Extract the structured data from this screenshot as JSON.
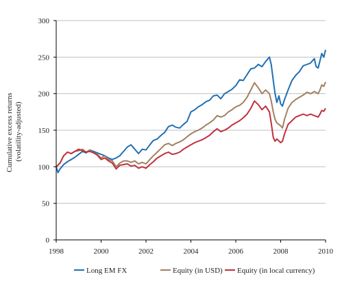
{
  "chart_data": {
    "type": "line",
    "title": "",
    "xlabel": "",
    "ylabel_lines": [
      "Cumulative excess returns",
      "(volatility-adjusted)"
    ],
    "xlim": [
      1998,
      2010
    ],
    "ylim": [
      0,
      300
    ],
    "x_ticks": [
      1998,
      2000,
      2002,
      2004,
      2006,
      2008,
      2010
    ],
    "y_ticks": [
      0,
      50,
      100,
      150,
      200,
      250,
      300
    ],
    "grid": "horizontal",
    "legend_position": "bottom",
    "series": [
      {
        "name": "Long EM FX",
        "color": "#1f6fb2",
        "points": [
          [
            1998.0,
            100
          ],
          [
            1998.08,
            92
          ],
          [
            1998.17,
            97
          ],
          [
            1998.33,
            103
          ],
          [
            1998.5,
            107
          ],
          [
            1998.67,
            110
          ],
          [
            1998.83,
            113
          ],
          [
            1999.0,
            117
          ],
          [
            1999.17,
            121
          ],
          [
            1999.33,
            119
          ],
          [
            1999.5,
            123
          ],
          [
            1999.67,
            121
          ],
          [
            1999.83,
            119
          ],
          [
            2000.0,
            117
          ],
          [
            2000.17,
            115
          ],
          [
            2000.33,
            112
          ],
          [
            2000.5,
            110
          ],
          [
            2000.67,
            112
          ],
          [
            2000.83,
            115
          ],
          [
            2001.0,
            121
          ],
          [
            2001.17,
            127
          ],
          [
            2001.33,
            130
          ],
          [
            2001.5,
            124
          ],
          [
            2001.67,
            118
          ],
          [
            2001.83,
            124
          ],
          [
            2002.0,
            123
          ],
          [
            2002.17,
            130
          ],
          [
            2002.33,
            136
          ],
          [
            2002.5,
            138
          ],
          [
            2002.67,
            143
          ],
          [
            2002.83,
            147
          ],
          [
            2003.0,
            155
          ],
          [
            2003.17,
            157
          ],
          [
            2003.33,
            154
          ],
          [
            2003.5,
            153
          ],
          [
            2003.67,
            158
          ],
          [
            2003.83,
            162
          ],
          [
            2004.0,
            175
          ],
          [
            2004.17,
            178
          ],
          [
            2004.33,
            182
          ],
          [
            2004.5,
            185
          ],
          [
            2004.67,
            189
          ],
          [
            2004.83,
            191
          ],
          [
            2005.0,
            197
          ],
          [
            2005.17,
            198
          ],
          [
            2005.33,
            193
          ],
          [
            2005.5,
            200
          ],
          [
            2005.67,
            203
          ],
          [
            2005.83,
            206
          ],
          [
            2006.0,
            211
          ],
          [
            2006.17,
            219
          ],
          [
            2006.33,
            218
          ],
          [
            2006.5,
            226
          ],
          [
            2006.67,
            234
          ],
          [
            2006.83,
            235
          ],
          [
            2007.0,
            240
          ],
          [
            2007.17,
            237
          ],
          [
            2007.33,
            244
          ],
          [
            2007.5,
            250
          ],
          [
            2007.58,
            240
          ],
          [
            2007.67,
            218
          ],
          [
            2007.75,
            200
          ],
          [
            2007.83,
            188
          ],
          [
            2007.92,
            197
          ],
          [
            2008.0,
            186
          ],
          [
            2008.08,
            183
          ],
          [
            2008.17,
            192
          ],
          [
            2008.33,
            205
          ],
          [
            2008.5,
            218
          ],
          [
            2008.67,
            225
          ],
          [
            2008.83,
            230
          ],
          [
            2009.0,
            238
          ],
          [
            2009.17,
            240
          ],
          [
            2009.33,
            242
          ],
          [
            2009.5,
            248
          ],
          [
            2009.58,
            237
          ],
          [
            2009.67,
            235
          ],
          [
            2009.75,
            245
          ],
          [
            2009.83,
            255
          ],
          [
            2009.92,
            250
          ],
          [
            2010.0,
            260
          ]
        ]
      },
      {
        "name": "Equity (in USD)",
        "color": "#a08060",
        "points": [
          [
            1998.0,
            100
          ],
          [
            1998.17,
            105
          ],
          [
            1998.33,
            115
          ],
          [
            1998.5,
            120
          ],
          [
            1998.67,
            118
          ],
          [
            1998.83,
            121
          ],
          [
            1999.0,
            122
          ],
          [
            1999.17,
            124
          ],
          [
            1999.33,
            120
          ],
          [
            1999.5,
            123
          ],
          [
            1999.67,
            119
          ],
          [
            1999.83,
            117
          ],
          [
            2000.0,
            112
          ],
          [
            2000.17,
            115
          ],
          [
            2000.33,
            110
          ],
          [
            2000.5,
            108
          ],
          [
            2000.67,
            100
          ],
          [
            2000.83,
            105
          ],
          [
            2001.0,
            108
          ],
          [
            2001.17,
            108
          ],
          [
            2001.33,
            106
          ],
          [
            2001.5,
            108
          ],
          [
            2001.67,
            104
          ],
          [
            2001.83,
            106
          ],
          [
            2002.0,
            104
          ],
          [
            2002.17,
            110
          ],
          [
            2002.33,
            115
          ],
          [
            2002.5,
            120
          ],
          [
            2002.67,
            125
          ],
          [
            2002.83,
            130
          ],
          [
            2003.0,
            132
          ],
          [
            2003.17,
            129
          ],
          [
            2003.33,
            132
          ],
          [
            2003.5,
            134
          ],
          [
            2003.67,
            137
          ],
          [
            2003.83,
            141
          ],
          [
            2004.0,
            145
          ],
          [
            2004.17,
            148
          ],
          [
            2004.33,
            150
          ],
          [
            2004.5,
            153
          ],
          [
            2004.67,
            157
          ],
          [
            2004.83,
            160
          ],
          [
            2005.0,
            164
          ],
          [
            2005.17,
            170
          ],
          [
            2005.33,
            168
          ],
          [
            2005.5,
            170
          ],
          [
            2005.67,
            175
          ],
          [
            2005.83,
            178
          ],
          [
            2006.0,
            182
          ],
          [
            2006.17,
            184
          ],
          [
            2006.33,
            188
          ],
          [
            2006.5,
            195
          ],
          [
            2006.67,
            205
          ],
          [
            2006.83,
            215
          ],
          [
            2007.0,
            208
          ],
          [
            2007.17,
            200
          ],
          [
            2007.33,
            205
          ],
          [
            2007.5,
            200
          ],
          [
            2007.58,
            190
          ],
          [
            2007.67,
            175
          ],
          [
            2007.75,
            165
          ],
          [
            2007.83,
            160
          ],
          [
            2008.0,
            156
          ],
          [
            2008.08,
            153
          ],
          [
            2008.17,
            165
          ],
          [
            2008.33,
            180
          ],
          [
            2008.5,
            188
          ],
          [
            2008.67,
            192
          ],
          [
            2008.83,
            195
          ],
          [
            2009.0,
            198
          ],
          [
            2009.17,
            202
          ],
          [
            2009.33,
            200
          ],
          [
            2009.5,
            203
          ],
          [
            2009.67,
            200
          ],
          [
            2009.75,
            205
          ],
          [
            2009.83,
            212
          ],
          [
            2009.92,
            210
          ],
          [
            2010.0,
            216
          ]
        ]
      },
      {
        "name": "Equity (in local currency)",
        "color": "#c0303c",
        "points": [
          [
            1998.0,
            100
          ],
          [
            1998.17,
            105
          ],
          [
            1998.33,
            115
          ],
          [
            1998.5,
            120
          ],
          [
            1998.67,
            118
          ],
          [
            1998.83,
            121
          ],
          [
            1999.0,
            124
          ],
          [
            1999.17,
            122
          ],
          [
            1999.33,
            120
          ],
          [
            1999.5,
            121
          ],
          [
            1999.67,
            119
          ],
          [
            1999.83,
            116
          ],
          [
            2000.0,
            110
          ],
          [
            2000.17,
            112
          ],
          [
            2000.33,
            108
          ],
          [
            2000.5,
            105
          ],
          [
            2000.67,
            97
          ],
          [
            2000.83,
            102
          ],
          [
            2001.0,
            103
          ],
          [
            2001.17,
            104
          ],
          [
            2001.33,
            101
          ],
          [
            2001.5,
            102
          ],
          [
            2001.67,
            98
          ],
          [
            2001.83,
            100
          ],
          [
            2002.0,
            98
          ],
          [
            2002.17,
            103
          ],
          [
            2002.33,
            107
          ],
          [
            2002.5,
            112
          ],
          [
            2002.67,
            115
          ],
          [
            2002.83,
            118
          ],
          [
            2003.0,
            120
          ],
          [
            2003.17,
            117
          ],
          [
            2003.33,
            118
          ],
          [
            2003.5,
            120
          ],
          [
            2003.67,
            124
          ],
          [
            2003.83,
            127
          ],
          [
            2004.0,
            130
          ],
          [
            2004.17,
            133
          ],
          [
            2004.33,
            135
          ],
          [
            2004.5,
            137
          ],
          [
            2004.67,
            140
          ],
          [
            2004.83,
            143
          ],
          [
            2005.0,
            148
          ],
          [
            2005.17,
            152
          ],
          [
            2005.33,
            148
          ],
          [
            2005.5,
            150
          ],
          [
            2005.67,
            153
          ],
          [
            2005.83,
            157
          ],
          [
            2006.0,
            160
          ],
          [
            2006.17,
            163
          ],
          [
            2006.33,
            167
          ],
          [
            2006.5,
            172
          ],
          [
            2006.67,
            180
          ],
          [
            2006.83,
            190
          ],
          [
            2007.0,
            185
          ],
          [
            2007.17,
            178
          ],
          [
            2007.33,
            183
          ],
          [
            2007.5,
            175
          ],
          [
            2007.58,
            160
          ],
          [
            2007.67,
            140
          ],
          [
            2007.75,
            135
          ],
          [
            2007.83,
            138
          ],
          [
            2008.0,
            133
          ],
          [
            2008.08,
            135
          ],
          [
            2008.17,
            145
          ],
          [
            2008.33,
            158
          ],
          [
            2008.5,
            163
          ],
          [
            2008.67,
            168
          ],
          [
            2008.83,
            170
          ],
          [
            2009.0,
            172
          ],
          [
            2009.17,
            170
          ],
          [
            2009.33,
            172
          ],
          [
            2009.5,
            170
          ],
          [
            2009.67,
            168
          ],
          [
            2009.75,
            172
          ],
          [
            2009.83,
            177
          ],
          [
            2009.92,
            176
          ],
          [
            2010.0,
            180
          ]
        ]
      }
    ]
  }
}
